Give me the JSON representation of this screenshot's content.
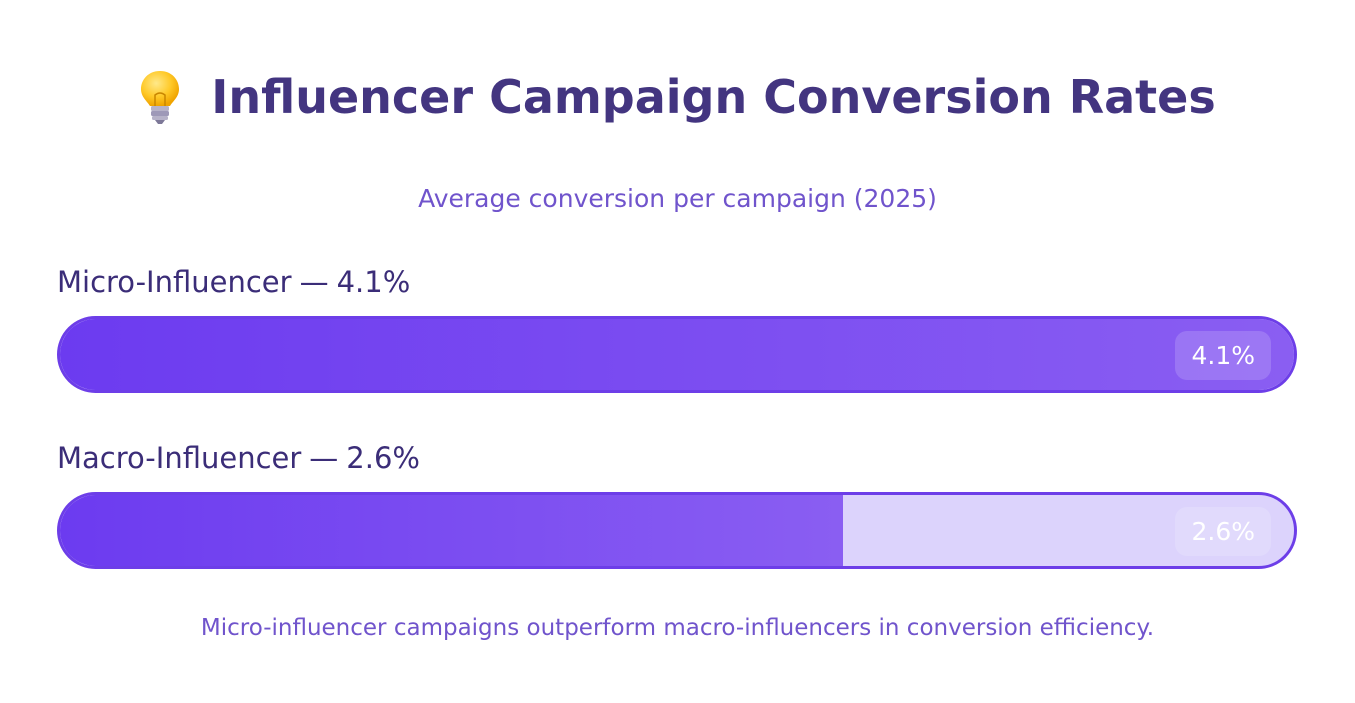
{
  "header": {
    "icon": "lightbulb-icon",
    "title": "Influencer Campaign Conversion Rates",
    "subtitle": "Average conversion per campaign (2025)"
  },
  "bars": [
    {
      "name": "Micro-Influencer",
      "separator": "—",
      "value_label": "4.1%",
      "value": 4.1
    },
    {
      "name": "Macro-Influencer",
      "separator": "—",
      "value_label": "2.6%",
      "value": 2.6
    }
  ],
  "footnote": "Micro-influencer campaigns outperform macro-influencers in conversion efficiency.",
  "colors": {
    "title": "#433580",
    "accent": "#6c3bf0",
    "accent_light": "#8a5ef2",
    "track": "#dcd3fc",
    "subtitle": "#7054cc"
  },
  "chart_data": {
    "type": "bar",
    "orientation": "horizontal",
    "title": "Influencer Campaign Conversion Rates",
    "subtitle": "Average conversion per campaign (2025)",
    "categories": [
      "Micro-Influencer",
      "Macro-Influencer"
    ],
    "values": [
      4.1,
      2.6
    ],
    "unit": "%",
    "xlim": [
      0,
      4.1
    ],
    "grid": false,
    "legend": "none"
  }
}
